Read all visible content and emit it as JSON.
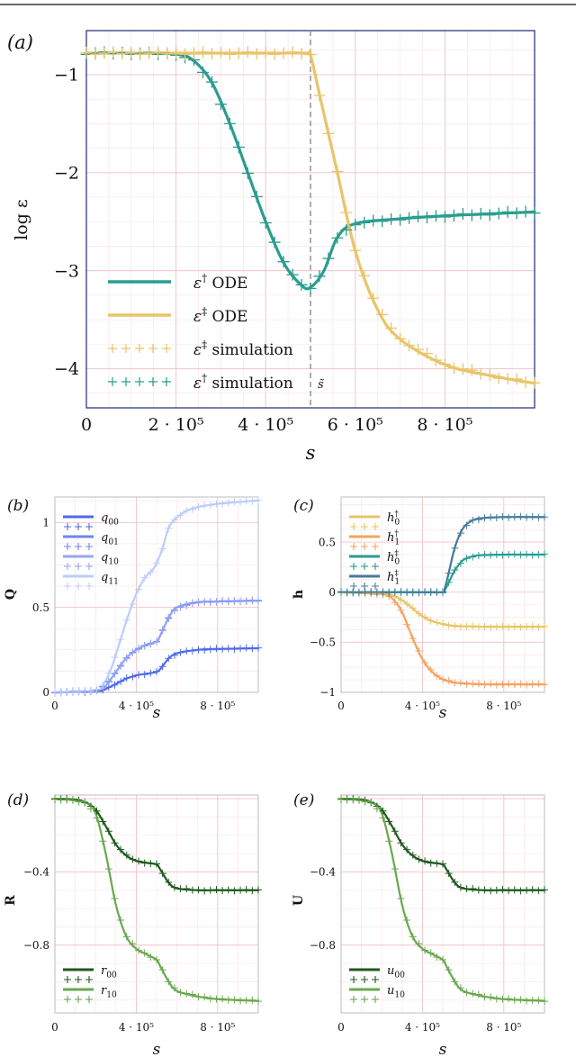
{
  "figure": {
    "top_rule": true
  },
  "chart_data": [
    {
      "id": "a",
      "type": "line",
      "panel_label": "(a)",
      "xlabel": "s",
      "ylabel": "log ε",
      "xlim": [
        0,
        1000000
      ],
      "ylim": [
        -4.4,
        -0.55
      ],
      "xticks": [
        0,
        200000,
        400000,
        600000,
        800000
      ],
      "xtick_labels": [
        "0",
        "2 · 10⁵",
        "4 · 10⁵",
        "6 · 10⁵",
        "8 · 10⁵"
      ],
      "yticks": [
        -1,
        -2,
        -3,
        -4
      ],
      "ytick_labels": [
        "−1",
        "−2",
        "−3",
        "−4"
      ],
      "vline": {
        "x": 500000,
        "label": "s̃"
      },
      "grid": true,
      "legend_position": "bottom-left",
      "series": [
        {
          "name": "ε† ODE",
          "style": "line",
          "color": "#2a9d8f",
          "x": [
            0,
            100000,
            200000,
            240000,
            280000,
            320000,
            360000,
            400000,
            440000,
            480000,
            500000,
            530000,
            560000,
            600000,
            700000,
            800000,
            900000,
            1000000
          ],
          "y": [
            -0.78,
            -0.78,
            -0.79,
            -0.86,
            -1.08,
            -1.5,
            -2.0,
            -2.5,
            -2.92,
            -3.15,
            -3.17,
            -3.0,
            -2.66,
            -2.52,
            -2.47,
            -2.44,
            -2.42,
            -2.4
          ]
        },
        {
          "name": "ε‡ ODE",
          "style": "line",
          "color": "#e9c46a",
          "x": [
            0,
            200000,
            400000,
            490000,
            500000,
            520000,
            560000,
            600000,
            650000,
            700000,
            800000,
            900000,
            1000000
          ],
          "y": [
            -0.78,
            -0.78,
            -0.78,
            -0.78,
            -0.8,
            -1.2,
            -2.0,
            -2.8,
            -3.4,
            -3.7,
            -3.96,
            -4.07,
            -4.15
          ]
        },
        {
          "name": "ε‡ simulation",
          "style": "marker",
          "color": "#e9c46a",
          "marker": "+"
        },
        {
          "name": "ε† simulation",
          "style": "marker",
          "color": "#2a9d8f",
          "marker": "+"
        }
      ]
    },
    {
      "id": "b",
      "type": "line",
      "panel_label": "(b)",
      "xlabel": "s",
      "ylabel": "Q",
      "xlim": [
        0,
        1000000
      ],
      "ylim": [
        0,
        1.15
      ],
      "xticks": [
        0,
        400000,
        800000
      ],
      "xtick_labels": [
        "0",
        "4 · 10⁵",
        "8 · 10⁵"
      ],
      "yticks": [
        0,
        0.5,
        1
      ],
      "ytick_labels": [
        "0",
        "0.5",
        "1"
      ],
      "grid": true,
      "legend_position": "top-left",
      "series": [
        {
          "name": "q00",
          "color": "#4f6ae8",
          "x": [
            0,
            200000,
            250000,
            300000,
            350000,
            400000,
            450000,
            500000,
            520000,
            560000,
            600000,
            700000,
            800000,
            900000,
            1000000
          ],
          "y": [
            0,
            0.005,
            0.02,
            0.05,
            0.08,
            0.1,
            0.11,
            0.12,
            0.14,
            0.2,
            0.23,
            0.25,
            0.255,
            0.258,
            0.26
          ]
        },
        {
          "name": "q01",
          "color": "#7085ee",
          "x": [
            0,
            200000,
            250000,
            300000,
            350000,
            400000,
            450000,
            500000,
            520000,
            560000,
            600000,
            700000,
            800000,
            900000,
            1000000
          ],
          "y": [
            0,
            0.01,
            0.04,
            0.12,
            0.2,
            0.25,
            0.28,
            0.3,
            0.34,
            0.44,
            0.5,
            0.53,
            0.535,
            0.538,
            0.54
          ]
        },
        {
          "name": "q10",
          "color": "#96a7f2",
          "x": [
            0,
            200000,
            250000,
            300000,
            350000,
            400000,
            450000,
            500000,
            520000,
            560000,
            600000,
            700000,
            800000,
            900000,
            1000000
          ],
          "y": [
            0,
            0.01,
            0.04,
            0.12,
            0.2,
            0.25,
            0.28,
            0.3,
            0.34,
            0.44,
            0.5,
            0.53,
            0.535,
            0.538,
            0.54
          ]
        },
        {
          "name": "q11",
          "color": "#bccdf8",
          "x": [
            0,
            200000,
            240000,
            280000,
            320000,
            360000,
            400000,
            440000,
            480000,
            500000,
            530000,
            560000,
            600000,
            650000,
            700000,
            800000,
            900000,
            1000000
          ],
          "y": [
            0,
            0.01,
            0.05,
            0.15,
            0.3,
            0.45,
            0.58,
            0.67,
            0.72,
            0.76,
            0.85,
            0.97,
            1.03,
            1.07,
            1.09,
            1.11,
            1.12,
            1.13
          ]
        }
      ]
    },
    {
      "id": "c",
      "type": "line",
      "panel_label": "(c)",
      "xlabel": "s",
      "ylabel": "h",
      "xlim": [
        0,
        1000000
      ],
      "ylim": [
        -1.0,
        0.95
      ],
      "xticks": [
        0,
        400000,
        800000
      ],
      "xtick_labels": [
        "0",
        "4 · 10⁵",
        "8 · 10⁵"
      ],
      "yticks": [
        0.5,
        0,
        -0.5,
        -1
      ],
      "ytick_labels": [
        "0.5",
        "0",
        "−0.5",
        "−1"
      ],
      "grid": true,
      "legend_position": "top-left",
      "series": [
        {
          "name": "h0†",
          "color": "#e9c46a",
          "x": [
            0,
            200000,
            250000,
            300000,
            350000,
            400000,
            450000,
            500000,
            550000,
            600000,
            700000,
            800000,
            900000,
            1000000
          ],
          "y": [
            0,
            -0.01,
            -0.03,
            -0.08,
            -0.16,
            -0.24,
            -0.29,
            -0.32,
            -0.335,
            -0.34,
            -0.345,
            -0.345,
            -0.345,
            -0.345
          ]
        },
        {
          "name": "h1†",
          "color": "#f4a261",
          "x": [
            0,
            200000,
            250000,
            300000,
            350000,
            400000,
            450000,
            500000,
            550000,
            600000,
            700000,
            800000,
            900000,
            1000000
          ],
          "y": [
            0,
            -0.02,
            -0.06,
            -0.2,
            -0.45,
            -0.67,
            -0.8,
            -0.87,
            -0.9,
            -0.91,
            -0.92,
            -0.92,
            -0.92,
            -0.92
          ]
        },
        {
          "name": "h0‡",
          "color": "#2a9d8f",
          "x": [
            0,
            400000,
            500000,
            510000,
            530000,
            560000,
            600000,
            650000,
            700000,
            800000,
            900000,
            1000000
          ],
          "y": [
            0,
            0,
            0,
            0.02,
            0.1,
            0.22,
            0.32,
            0.36,
            0.37,
            0.375,
            0.375,
            0.375
          ]
        },
        {
          "name": "h1‡",
          "color": "#457b9d",
          "x": [
            0,
            400000,
            500000,
            510000,
            530000,
            560000,
            600000,
            650000,
            700000,
            800000,
            900000,
            1000000
          ],
          "y": [
            0,
            0,
            0,
            0.04,
            0.2,
            0.45,
            0.64,
            0.72,
            0.74,
            0.75,
            0.75,
            0.75
          ]
        }
      ]
    },
    {
      "id": "d",
      "type": "line",
      "panel_label": "(d)",
      "xlabel": "s",
      "ylabel": "R",
      "xlim": [
        0,
        1000000
      ],
      "ylim": [
        -1.17,
        0.02
      ],
      "xticks": [
        0,
        400000,
        800000
      ],
      "xtick_labels": [
        "0",
        "4 · 10⁵",
        "8 · 10⁵"
      ],
      "yticks": [
        -0.4,
        -0.8
      ],
      "ytick_labels": [
        "−0.4",
        "−0.8"
      ],
      "grid": true,
      "legend_position": "bottom-left",
      "series": [
        {
          "name": "r00",
          "color": "#1f5a1f",
          "x": [
            0,
            100000,
            150000,
            200000,
            250000,
            300000,
            350000,
            400000,
            450000,
            500000,
            520000,
            560000,
            600000,
            700000,
            800000,
            900000,
            1000000
          ],
          "y": [
            0,
            -0.005,
            -0.02,
            -0.06,
            -0.15,
            -0.25,
            -0.31,
            -0.34,
            -0.35,
            -0.36,
            -0.39,
            -0.46,
            -0.49,
            -0.5,
            -0.5,
            -0.5,
            -0.5
          ]
        },
        {
          "name": "r10",
          "color": "#6aa84f",
          "x": [
            0,
            150000,
            200000,
            250000,
            300000,
            350000,
            400000,
            450000,
            500000,
            520000,
            560000,
            600000,
            700000,
            800000,
            900000,
            1000000
          ],
          "y": [
            0,
            -0.02,
            -0.08,
            -0.3,
            -0.58,
            -0.75,
            -0.82,
            -0.85,
            -0.88,
            -0.92,
            -1.0,
            -1.05,
            -1.08,
            -1.095,
            -1.1,
            -1.105
          ]
        }
      ]
    },
    {
      "id": "e",
      "type": "line",
      "panel_label": "(e)",
      "xlabel": "s",
      "ylabel": "U",
      "xlim": [
        0,
        1000000
      ],
      "ylim": [
        -1.17,
        0.02
      ],
      "xticks": [
        0,
        400000,
        800000
      ],
      "xtick_labels": [
        "0",
        "4 · 10⁵",
        "8 · 10⁵"
      ],
      "yticks": [
        -0.4,
        -0.8
      ],
      "ytick_labels": [
        "−0.4",
        "−0.8"
      ],
      "grid": true,
      "legend_position": "bottom-left",
      "series": [
        {
          "name": "u00",
          "color": "#1f5a1f",
          "x": [
            0,
            100000,
            150000,
            200000,
            250000,
            300000,
            350000,
            400000,
            450000,
            500000,
            520000,
            560000,
            600000,
            700000,
            800000,
            900000,
            1000000
          ],
          "y": [
            0,
            -0.005,
            -0.02,
            -0.06,
            -0.15,
            -0.25,
            -0.31,
            -0.34,
            -0.35,
            -0.36,
            -0.39,
            -0.46,
            -0.49,
            -0.5,
            -0.5,
            -0.5,
            -0.5
          ]
        },
        {
          "name": "u10",
          "color": "#6aa84f",
          "x": [
            0,
            150000,
            200000,
            250000,
            300000,
            350000,
            400000,
            450000,
            500000,
            520000,
            560000,
            600000,
            700000,
            800000,
            900000,
            1000000
          ],
          "y": [
            0,
            -0.02,
            -0.08,
            -0.3,
            -0.58,
            -0.75,
            -0.82,
            -0.85,
            -0.88,
            -0.92,
            -1.0,
            -1.05,
            -1.08,
            -1.095,
            -1.1,
            -1.105
          ]
        }
      ]
    }
  ]
}
